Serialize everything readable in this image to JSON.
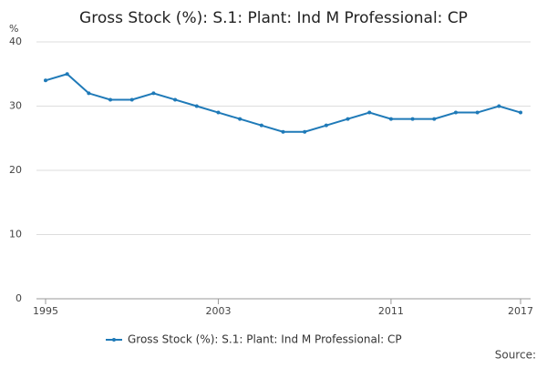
{
  "chart_data": {
    "type": "line",
    "title": "Gross Stock (%): S.1: Plant: Ind M Professional: CP",
    "y_label": "%",
    "source": "Source:",
    "x": [
      1995,
      1996,
      1997,
      1998,
      1999,
      2000,
      2001,
      2002,
      2003,
      2004,
      2005,
      2006,
      2007,
      2008,
      2009,
      2010,
      2011,
      2012,
      2013,
      2014,
      2015,
      2016,
      2017
    ],
    "series": [
      {
        "name": "Gross Stock (%): S.1: Plant: Ind M Professional: CP",
        "color": "#1f7ab8",
        "values": [
          34,
          35,
          32,
          31,
          31,
          32,
          31,
          30,
          29,
          28,
          27,
          26,
          26,
          27,
          28,
          29,
          28,
          28,
          28,
          29,
          29,
          30,
          29
        ]
      }
    ],
    "xlim": [
      1995,
      2017
    ],
    "xticks": [
      1995,
      2003,
      2011,
      2017
    ],
    "ylim": [
      0,
      40
    ],
    "yticks": [
      0,
      10,
      20,
      30,
      40
    ],
    "grid": true
  }
}
